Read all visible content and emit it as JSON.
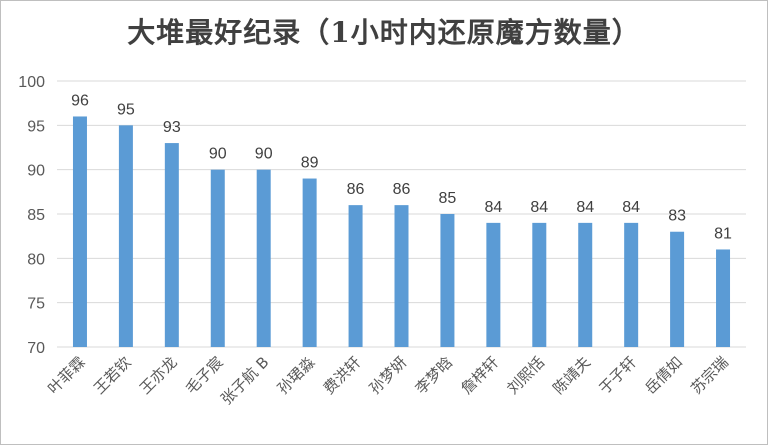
{
  "chart_data": {
    "type": "bar",
    "title": "大堆最好纪录（1小时内还原魔方数量）",
    "categories": [
      "叶菲霖",
      "王若钦",
      "王亦龙",
      "毛子宸",
      "张子航 B",
      "孙珺淼",
      "费洪轩",
      "孙梦妍",
      "李梦晗",
      "詹梓轩",
      "刘熙恬",
      "陈靖夫",
      "于子轩",
      "岳倩如",
      "苏宗瑞"
    ],
    "values": [
      96,
      95,
      93,
      90,
      90,
      89,
      86,
      86,
      85,
      84,
      84,
      84,
      84,
      83,
      81
    ],
    "ylim": [
      70,
      100
    ],
    "yticks": [
      70,
      75,
      80,
      85,
      90,
      95,
      100
    ],
    "grid": true,
    "data_labels": true,
    "bar_color": "#5B9BD5",
    "grid_color": "#d9d9d9"
  }
}
